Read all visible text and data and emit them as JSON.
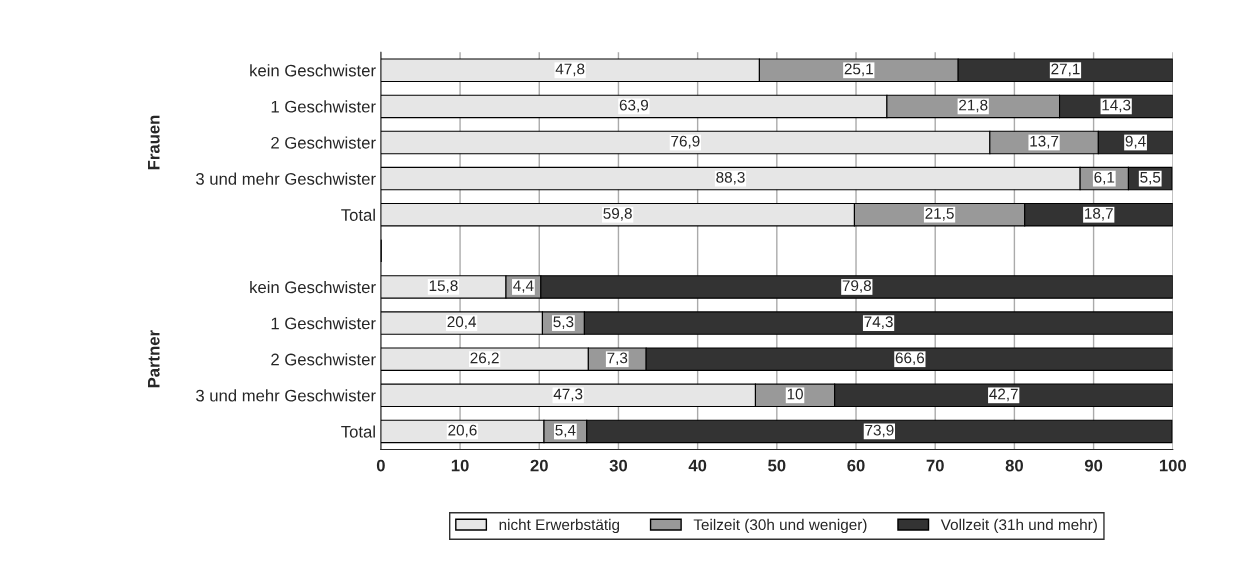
{
  "chart_data": {
    "type": "bar",
    "orientation": "horizontal",
    "stacked": true,
    "categories": [
      "kein Geschwister",
      "1 Geschwister",
      "2 Geschwister",
      "3 und mehr Geschwister",
      "Total",
      null,
      "kein Geschwister",
      "1 Geschwister",
      "2 Geschwister",
      "3 und mehr Geschwister",
      "Total"
    ],
    "series": [
      {
        "name": "nicht Erwerbstätig",
        "color": "#e6e6e6",
        "values": [
          47.8,
          63.9,
          76.9,
          88.3,
          59.8,
          null,
          15.8,
          20.4,
          26.2,
          47.3,
          20.6
        ],
        "value_labels": [
          "47,8",
          "63,9",
          "76,9",
          "88,3",
          "59,8",
          null,
          "15,8",
          "20,4",
          "26,2",
          "47,3",
          "20,6"
        ]
      },
      {
        "name": "Teilzeit (30h und weniger)",
        "color": "#999999",
        "values": [
          25.1,
          21.8,
          13.7,
          6.1,
          21.5,
          null,
          4.4,
          5.3,
          7.3,
          10,
          5.4
        ],
        "value_labels": [
          "25,1",
          "21,8",
          "13,7",
          "6,1",
          "21,5",
          null,
          "4,4",
          "5,3",
          "7,3",
          "10",
          "5,4"
        ]
      },
      {
        "name": "Vollzeit (31h und mehr)",
        "color": "#333333",
        "values": [
          27.1,
          14.3,
          9.4,
          5.5,
          18.7,
          null,
          79.8,
          74.3,
          66.6,
          42.7,
          73.9
        ],
        "value_labels": [
          "27,1",
          "14,3",
          "9,4",
          "5,5",
          "18,7",
          null,
          "79,8",
          "74,3",
          "66,6",
          "42,7",
          "73,9"
        ]
      }
    ],
    "annotations": [
      "Frauen",
      "Partner"
    ],
    "xlim": [
      0,
      100
    ],
    "xticks": [
      0,
      10,
      20,
      30,
      40,
      50,
      60,
      70,
      80,
      90,
      100
    ],
    "grid": "x",
    "legend": "bottom"
  }
}
